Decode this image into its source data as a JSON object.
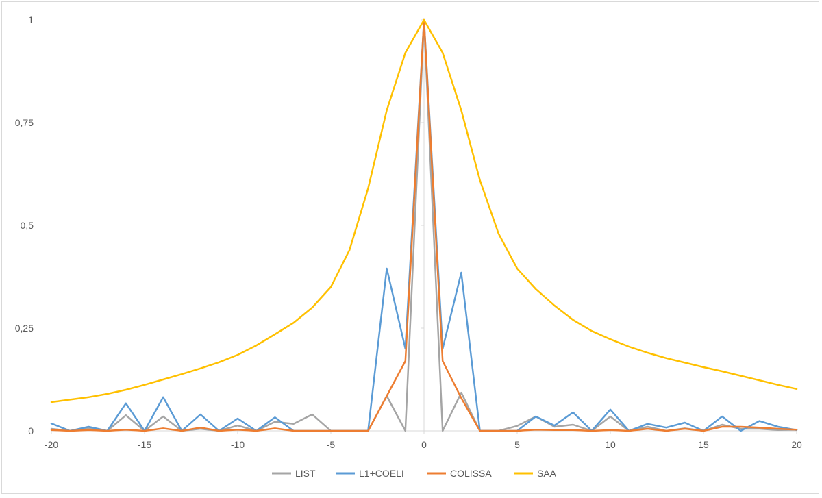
{
  "chart_data": {
    "type": "line",
    "title": "",
    "xlabel": "",
    "ylabel": "",
    "xlim": [
      -20,
      20
    ],
    "ylim": [
      0,
      1
    ],
    "x_ticks": [
      -20,
      -15,
      -10,
      -5,
      0,
      5,
      10,
      15,
      20
    ],
    "x_tick_labels": [
      "-20",
      "-15",
      "-10",
      "-5",
      "0",
      "5",
      "10",
      "15",
      "20"
    ],
    "y_ticks": [
      0,
      0.25,
      0.5,
      0.75,
      1
    ],
    "y_tick_labels": [
      "0",
      "0,25",
      "0,5",
      "0,75",
      "1"
    ],
    "grid": false,
    "legend_position": "bottom",
    "x": [
      -20,
      -19,
      -18,
      -17,
      -16,
      -15,
      -14,
      -13,
      -12,
      -11,
      -10,
      -9,
      -8,
      -7,
      -6,
      -5,
      -4,
      -3,
      -2,
      -1,
      0,
      1,
      2,
      3,
      4,
      5,
      6,
      7,
      8,
      9,
      10,
      11,
      12,
      13,
      14,
      15,
      16,
      17,
      18,
      19,
      20
    ],
    "series": [
      {
        "name": "LIST",
        "color": "#a5a5a5",
        "values": [
          0.005,
          0,
          0.006,
          0,
          0.038,
          0,
          0.035,
          0,
          0.005,
          0,
          0.013,
          0,
          0.022,
          0.017,
          0.04,
          0,
          0,
          0,
          0.085,
          0,
          1,
          0,
          0.093,
          0,
          0,
          0.012,
          0.035,
          0.01,
          0.015,
          0,
          0.035,
          0,
          0.01,
          0,
          0.006,
          0,
          0.015,
          0.005,
          0.005,
          0.002,
          0.003
        ]
      },
      {
        "name": "L1+COELI",
        "color": "#5b9bd5",
        "values": [
          0.018,
          0,
          0.01,
          0,
          0.067,
          0,
          0.082,
          0,
          0.04,
          0,
          0.03,
          0,
          0.033,
          0,
          0,
          0,
          0,
          0,
          0.395,
          0.2,
          1,
          0.2,
          0.385,
          0,
          0,
          0,
          0.035,
          0.013,
          0.045,
          0,
          0.052,
          0,
          0.017,
          0.008,
          0.02,
          0,
          0.035,
          0,
          0.024,
          0.01,
          0.002
        ]
      },
      {
        "name": "COLISSA",
        "color": "#ed7d31",
        "values": [
          0.002,
          0,
          0.002,
          0,
          0.003,
          0,
          0.006,
          0,
          0.008,
          0,
          0.003,
          0,
          0.006,
          0,
          0,
          0,
          0,
          0,
          0.085,
          0.17,
          1,
          0.17,
          0.08,
          0,
          0,
          0,
          0.003,
          0.002,
          0.002,
          0,
          0.002,
          0,
          0.005,
          0,
          0.005,
          0,
          0.01,
          0.01,
          0.008,
          0.005,
          0.003
        ]
      },
      {
        "name": "SAA",
        "color": "#ffc000",
        "values": [
          0.07,
          0.076,
          0.082,
          0.09,
          0.1,
          0.112,
          0.125,
          0.138,
          0.152,
          0.167,
          0.185,
          0.208,
          0.235,
          0.263,
          0.3,
          0.35,
          0.44,
          0.59,
          0.78,
          0.92,
          1,
          0.92,
          0.78,
          0.61,
          0.48,
          0.395,
          0.345,
          0.305,
          0.27,
          0.243,
          0.223,
          0.205,
          0.19,
          0.177,
          0.166,
          0.155,
          0.145,
          0.134,
          0.123,
          0.112,
          0.102
        ]
      }
    ]
  }
}
